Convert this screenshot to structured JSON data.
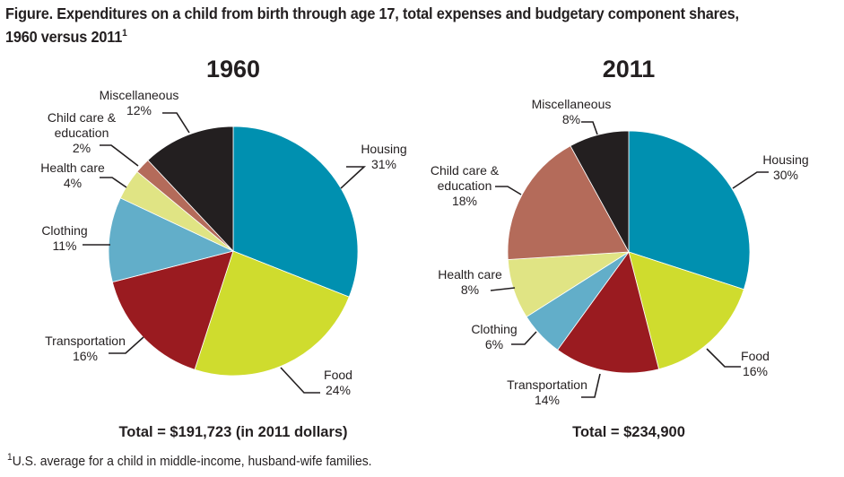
{
  "title": "Figure. Expenditures on a child from birth through age 17, total expenses and budgetary component shares, 1960 versus 2011",
  "title_line1": "Figure. Expenditures on a child from birth through age 17, total expenses and budgetary component shares,",
  "title_line2": "1960 versus 2011",
  "title_footnote_marker": "1",
  "footnote_marker": "1",
  "footnote": "U.S. average for a child in middle-income, husband-wife families.",
  "colors": {
    "Housing": "#0090b0",
    "Food": "#cfdc2e",
    "Transportation": "#9a1b20",
    "Clothing": "#62aec9",
    "Health care": "#e0e484",
    "Child care & education": "#b46b5a",
    "Miscellaneous": "#231f20"
  },
  "chart_data": [
    {
      "type": "pie",
      "title": "1960",
      "total_label": "Total = $191,723 (in 2011 dollars)",
      "categories": [
        "Housing",
        "Food",
        "Transportation",
        "Clothing",
        "Health care",
        "Child care & education",
        "Miscellaneous"
      ],
      "values": [
        31,
        24,
        16,
        11,
        4,
        2,
        12
      ],
      "labels": [
        {
          "name": "Housing",
          "lines": [
            "Housing",
            "31%"
          ]
        },
        {
          "name": "Food",
          "lines": [
            "Food",
            "24%"
          ]
        },
        {
          "name": "Transportation",
          "lines": [
            "Transportation",
            "16%"
          ]
        },
        {
          "name": "Clothing",
          "lines": [
            "Clothing",
            "11%"
          ]
        },
        {
          "name": "Health care",
          "lines": [
            "Health care",
            "4%"
          ]
        },
        {
          "name": "Child care & education",
          "lines": [
            "Child care &",
            "education",
            "2%"
          ]
        },
        {
          "name": "Miscellaneous",
          "lines": [
            "Miscellaneous",
            "12%"
          ]
        }
      ],
      "units": "percent"
    },
    {
      "type": "pie",
      "title": "2011",
      "total_label": "Total = $234,900",
      "categories": [
        "Housing",
        "Food",
        "Transportation",
        "Clothing",
        "Health care",
        "Child care & education",
        "Miscellaneous"
      ],
      "values": [
        30,
        16,
        14,
        6,
        8,
        18,
        8
      ],
      "labels": [
        {
          "name": "Housing",
          "lines": [
            "Housing",
            "30%"
          ]
        },
        {
          "name": "Food",
          "lines": [
            "Food",
            "16%"
          ]
        },
        {
          "name": "Transportation",
          "lines": [
            "Transportation",
            "14%"
          ]
        },
        {
          "name": "Clothing",
          "lines": [
            "Clothing",
            "6%"
          ]
        },
        {
          "name": "Health care",
          "lines": [
            "Health care",
            "8%"
          ]
        },
        {
          "name": "Child care & education",
          "lines": [
            "Child care &",
            "education",
            "18%"
          ]
        },
        {
          "name": "Miscellaneous",
          "lines": [
            "Miscellaneous",
            "8%"
          ]
        }
      ],
      "units": "percent"
    }
  ]
}
